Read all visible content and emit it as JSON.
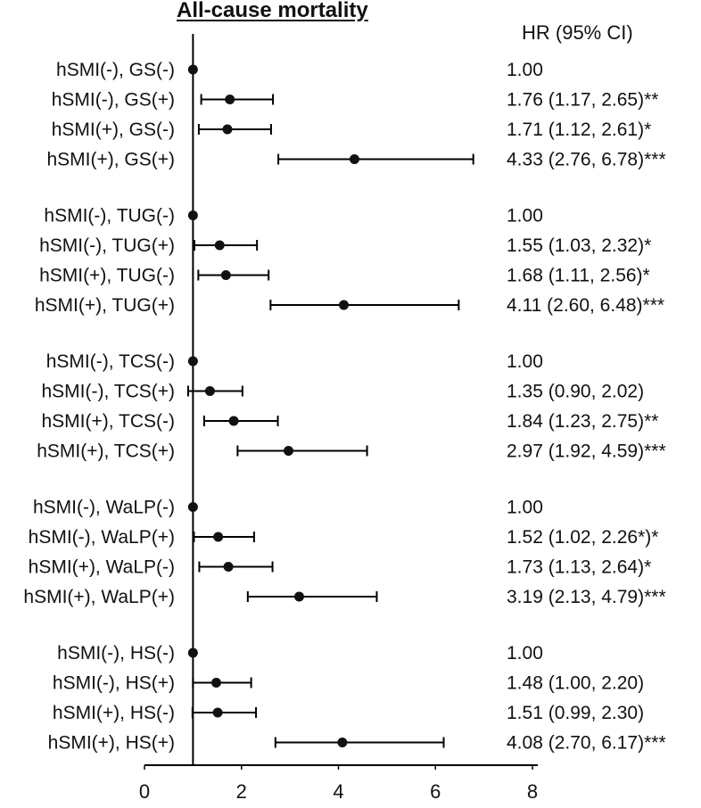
{
  "chart_data": {
    "type": "forest",
    "title": "All-cause mortality",
    "column_header": "HR (95% CI)",
    "xticks": [
      0,
      2,
      4,
      6,
      8
    ],
    "xlim": [
      0,
      8
    ],
    "reference_line": 1,
    "groups": [
      {
        "rows": [
          {
            "label": "hSMI(-), GS(-)",
            "hr": 1.0,
            "ci": null,
            "text": "1.00"
          },
          {
            "label": "hSMI(-), GS(+)",
            "hr": 1.76,
            "ci": [
              1.17,
              2.65
            ],
            "text": "1.76 (1.17, 2.65)**"
          },
          {
            "label": "hSMI(+), GS(-)",
            "hr": 1.71,
            "ci": [
              1.12,
              2.61
            ],
            "text": "1.71 (1.12, 2.61)*"
          },
          {
            "label": "hSMI(+), GS(+)",
            "hr": 4.33,
            "ci": [
              2.76,
              6.78
            ],
            "text": "4.33 (2.76, 6.78)***"
          }
        ]
      },
      {
        "rows": [
          {
            "label": "hSMI(-), TUG(-)",
            "hr": 1.0,
            "ci": null,
            "text": "1.00"
          },
          {
            "label": "hSMI(-), TUG(+)",
            "hr": 1.55,
            "ci": [
              1.03,
              2.32
            ],
            "text": "1.55 (1.03, 2.32)*"
          },
          {
            "label": "hSMI(+), TUG(-)",
            "hr": 1.68,
            "ci": [
              1.11,
              2.56
            ],
            "text": "1.68 (1.11, 2.56)*"
          },
          {
            "label": "hSMI(+), TUG(+)",
            "hr": 4.11,
            "ci": [
              2.6,
              6.48
            ],
            "text": "4.11 (2.60, 6.48)***"
          }
        ]
      },
      {
        "rows": [
          {
            "label": "hSMI(-), TCS(-)",
            "hr": 1.0,
            "ci": null,
            "text": "1.00"
          },
          {
            "label": "hSMI(-), TCS(+)",
            "hr": 1.35,
            "ci": [
              0.9,
              2.02
            ],
            "text": "1.35 (0.90, 2.02)"
          },
          {
            "label": "hSMI(+), TCS(-)",
            "hr": 1.84,
            "ci": [
              1.23,
              2.75
            ],
            "text": "1.84 (1.23, 2.75)**"
          },
          {
            "label": "hSMI(+), TCS(+)",
            "hr": 2.97,
            "ci": [
              1.92,
              4.59
            ],
            "text": "2.97 (1.92, 4.59)***"
          }
        ]
      },
      {
        "rows": [
          {
            "label": "hSMI(-), WaLP(-)",
            "hr": 1.0,
            "ci": null,
            "text": "1.00"
          },
          {
            "label": "hSMI(-), WaLP(+)",
            "hr": 1.52,
            "ci": [
              1.02,
              2.26
            ],
            "text": "1.52 (1.02, 2.26*)*"
          },
          {
            "label": "hSMI(+), WaLP(-)",
            "hr": 1.73,
            "ci": [
              1.13,
              2.64
            ],
            "text": "1.73 (1.13, 2.64)*"
          },
          {
            "label": "hSMI(+), WaLP(+)",
            "hr": 3.19,
            "ci": [
              2.13,
              4.79
            ],
            "text": "3.19 (2.13, 4.79)***"
          }
        ]
      },
      {
        "rows": [
          {
            "label": "hSMI(-), HS(-)",
            "hr": 1.0,
            "ci": null,
            "text": "1.00"
          },
          {
            "label": "hSMI(-), HS(+)",
            "hr": 1.48,
            "ci": [
              1.0,
              2.2
            ],
            "text": "1.48 (1.00, 2.20)"
          },
          {
            "label": "hSMI(+), HS(-)",
            "hr": 1.51,
            "ci": [
              0.99,
              2.3
            ],
            "text": "1.51 (0.99, 2.30)"
          },
          {
            "label": "hSMI(+), HS(+)",
            "hr": 4.08,
            "ci": [
              2.7,
              6.17
            ],
            "text": "4.08 (2.70, 6.17)***"
          }
        ]
      }
    ]
  }
}
